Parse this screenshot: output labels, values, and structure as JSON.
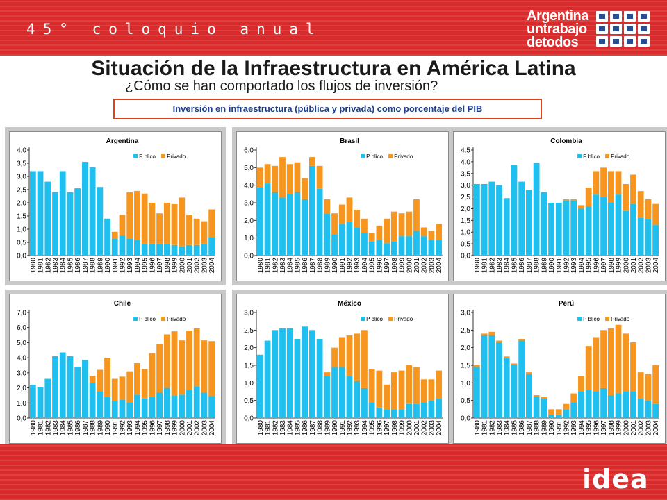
{
  "header": {
    "coloquio": "45° coloquio anual",
    "logo_lines": [
      "Argentina",
      "untrabajo",
      "detodos"
    ]
  },
  "title": "Situación de la Infraestructura en América Latina",
  "subtitle": "¿Cómo se han comportado los flujos de inversión?",
  "chart_box_title": "Inversión en infraestructura (pública y privada) como porcentaje del PIB",
  "footer": {
    "brand": "idea"
  },
  "colors": {
    "publico": "#1fc0f0",
    "privado": "#f7961e",
    "band": "#d92b2b",
    "box_border": "#e0411d",
    "box_text": "#1f3e8a"
  },
  "chart_data": [
    {
      "type": "bar",
      "stacked": true,
      "title": "Argentina",
      "categories": [
        "1980",
        "1981",
        "1982",
        "1983",
        "1984",
        "1985",
        "1986",
        "1987",
        "1988",
        "1989",
        "1990",
        "1991",
        "1992",
        "1993",
        "1994",
        "1995",
        "1996",
        "1997",
        "1998",
        "1999",
        "2000",
        "2001",
        "2002",
        "2003",
        "2004"
      ],
      "series": [
        {
          "name": "Público",
          "values": [
            3.2,
            3.2,
            2.8,
            2.4,
            3.2,
            2.4,
            2.55,
            3.55,
            3.35,
            2.6,
            1.4,
            0.65,
            0.75,
            0.65,
            0.6,
            0.45,
            0.45,
            0.45,
            0.45,
            0.4,
            0.35,
            0.4,
            0.4,
            0.45,
            0.7
          ]
        },
        {
          "name": "Privado",
          "values": [
            0,
            0,
            0,
            0,
            0,
            0,
            0,
            0,
            0,
            0,
            0,
            0.25,
            0.8,
            1.75,
            1.85,
            1.9,
            1.55,
            1.15,
            1.55,
            1.55,
            1.85,
            1.15,
            1.0,
            0.85,
            1.05
          ]
        }
      ],
      "ylim": [
        0,
        4.0
      ],
      "yticks": [
        "0,0",
        "0,5",
        "1,0",
        "1,5",
        "2,0",
        "2,5",
        "3,0",
        "3,5",
        "4,0"
      ],
      "legend": [
        "Público",
        "Privado"
      ],
      "legend_labels": [
        "P blico",
        "Privado"
      ],
      "legend_placement": "top-right",
      "grid": false
    },
    {
      "type": "bar",
      "stacked": true,
      "title": "Brasil",
      "categories": [
        "1980",
        "1981",
        "1982",
        "1983",
        "1984",
        "1985",
        "1986",
        "1987",
        "1988",
        "1989",
        "1990",
        "1991",
        "1992",
        "1993",
        "1994",
        "1995",
        "1996",
        "1997",
        "1998",
        "1999",
        "2000",
        "2001",
        "2002",
        "2003",
        "2004"
      ],
      "series": [
        {
          "name": "Público",
          "values": [
            3.9,
            4.1,
            3.6,
            3.3,
            3.5,
            3.6,
            3.2,
            5.1,
            3.8,
            2.4,
            1.2,
            1.8,
            1.9,
            1.6,
            1.3,
            0.8,
            0.9,
            0.7,
            0.8,
            1.1,
            1.1,
            1.4,
            1.1,
            0.9,
            0.9
          ]
        },
        {
          "name": "Privado",
          "values": [
            1.1,
            1.1,
            1.5,
            2.3,
            1.7,
            1.7,
            1.2,
            0.5,
            1.3,
            0.8,
            1.2,
            1.1,
            1.4,
            1.0,
            0.8,
            0.5,
            0.8,
            1.4,
            1.7,
            1.3,
            1.4,
            1.8,
            0.5,
            0.5,
            0.9
          ]
        }
      ],
      "ylim": [
        0,
        6.0
      ],
      "yticks": [
        "0,0",
        "1,0",
        "2,0",
        "3,0",
        "4,0",
        "5,0",
        "6,0"
      ],
      "legend": [
        "Público",
        "Privado"
      ],
      "legend_labels": [
        "P blico",
        "Privado"
      ],
      "legend_placement": "top-right",
      "grid": false
    },
    {
      "type": "bar",
      "stacked": true,
      "title": "Colombia",
      "categories": [
        "1980",
        "1981",
        "1982",
        "1983",
        "1984",
        "1985",
        "1986",
        "1987",
        "1988",
        "1989",
        "1990",
        "1991",
        "1992",
        "1993",
        "1994",
        "1995",
        "1996",
        "1997",
        "1998",
        "1999",
        "2000",
        "2001",
        "2002",
        "2003",
        "2004"
      ],
      "series": [
        {
          "name": "Público",
          "values": [
            3.05,
            3.05,
            3.15,
            3.0,
            2.45,
            3.85,
            3.15,
            2.8,
            3.95,
            2.7,
            2.25,
            2.25,
            2.35,
            2.35,
            2.0,
            2.1,
            2.6,
            2.5,
            2.25,
            2.6,
            1.9,
            2.2,
            1.6,
            1.55,
            1.3
          ]
        },
        {
          "name": "Privado",
          "values": [
            0,
            0,
            0,
            0,
            0,
            0,
            0,
            0,
            0,
            0,
            0,
            0,
            0.05,
            0.05,
            0.15,
            0.8,
            1.0,
            1.25,
            1.35,
            1.0,
            1.15,
            1.25,
            1.15,
            0.85,
            0.9
          ]
        }
      ],
      "ylim": [
        0,
        4.5
      ],
      "yticks": [
        "0,0",
        "0,5",
        "1,0",
        "1,5",
        "2,0",
        "2,5",
        "3,0",
        "3,5",
        "4,0",
        "4,5"
      ],
      "legend": [
        "Público",
        "Privado"
      ],
      "legend_labels": [
        "P blico",
        "Privado"
      ],
      "legend_placement": "top-right",
      "grid": false
    },
    {
      "type": "bar",
      "stacked": true,
      "title": "Chile",
      "categories": [
        "1980",
        "1981",
        "1982",
        "1983",
        "1984",
        "1985",
        "1986",
        "1987",
        "1988",
        "1989",
        "1990",
        "1991",
        "1992",
        "1993",
        "1994",
        "1995",
        "1996",
        "1997",
        "1998",
        "1999",
        "2000",
        "2001",
        "2002",
        "2003",
        "2004"
      ],
      "series": [
        {
          "name": "Público",
          "values": [
            2.2,
            2.05,
            2.6,
            4.1,
            4.35,
            4.1,
            3.4,
            3.85,
            2.35,
            1.75,
            1.4,
            1.15,
            1.2,
            1.05,
            1.55,
            1.3,
            1.4,
            1.7,
            2.0,
            1.5,
            1.55,
            1.85,
            2.1,
            1.7,
            1.45
          ]
        },
        {
          "name": "Privado",
          "values": [
            0,
            0,
            0,
            0,
            0,
            0,
            0,
            0,
            0.45,
            1.45,
            2.6,
            1.45,
            1.55,
            2.05,
            2.1,
            1.95,
            2.9,
            3.2,
            3.55,
            4.25,
            3.6,
            3.95,
            3.85,
            3.45,
            3.65
          ]
        }
      ],
      "ylim": [
        0,
        7.0
      ],
      "yticks": [
        "0,0",
        "1,0",
        "2,0",
        "3,0",
        "4,0",
        "5,0",
        "6,0",
        "7,0"
      ],
      "legend": [
        "Público",
        "Privado"
      ],
      "legend_labels": [
        "P blico",
        "Privado"
      ],
      "legend_placement": "top-right",
      "grid": false
    },
    {
      "type": "bar",
      "stacked": true,
      "title": "México",
      "categories": [
        "1980",
        "1981",
        "1982",
        "1983",
        "1984",
        "1985",
        "1986",
        "1987",
        "1988",
        "1989",
        "1990",
        "1991",
        "1992",
        "1993",
        "1994",
        "1995",
        "1996",
        "1997",
        "1998",
        "1999",
        "2000",
        "2001",
        "2002",
        "2003",
        "2004"
      ],
      "series": [
        {
          "name": "Público",
          "values": [
            1.8,
            2.2,
            2.5,
            2.55,
            2.55,
            2.25,
            2.6,
            2.5,
            2.25,
            1.2,
            1.45,
            1.45,
            1.2,
            1.05,
            0.85,
            0.45,
            0.3,
            0.25,
            0.25,
            0.25,
            0.4,
            0.4,
            0.45,
            0.5,
            0.55
          ]
        },
        {
          "name": "Privado",
          "values": [
            0,
            0,
            0,
            0,
            0,
            0,
            0,
            0,
            0,
            0.1,
            0.55,
            0.85,
            1.15,
            1.35,
            1.65,
            0.95,
            1.05,
            0.7,
            1.05,
            1.1,
            1.1,
            1.05,
            0.65,
            0.6,
            0.8
          ]
        }
      ],
      "ylim": [
        0,
        3.0
      ],
      "yticks": [
        "0,0",
        "0,5",
        "1,0",
        "1,5",
        "2,0",
        "2,5",
        "3,0"
      ],
      "legend": [
        "Público",
        "Privado"
      ],
      "legend_labels": [
        "P blico",
        "Privado"
      ],
      "legend_placement": "top-right",
      "grid": false
    },
    {
      "type": "bar",
      "stacked": true,
      "title": "Perú",
      "categories": [
        "1980",
        "1981",
        "1982",
        "1983",
        "1984",
        "1985",
        "1986",
        "1987",
        "1988",
        "1989",
        "1990",
        "1991",
        "1992",
        "1993",
        "1994",
        "1995",
        "1996",
        "1997",
        "1998",
        "1999",
        "2000",
        "2001",
        "2002",
        "2003",
        "2004"
      ],
      "series": [
        {
          "name": "Público",
          "values": [
            1.45,
            2.35,
            2.35,
            2.15,
            1.7,
            1.5,
            2.2,
            1.25,
            0.6,
            0.55,
            0.1,
            0.1,
            0.25,
            0.45,
            0.75,
            0.8,
            0.75,
            0.85,
            0.65,
            0.7,
            0.75,
            0.75,
            0.55,
            0.5,
            0.4
          ]
        },
        {
          "name": "Privado",
          "values": [
            0.05,
            0.05,
            0.1,
            0.05,
            0.05,
            0.05,
            0.05,
            0.05,
            0.05,
            0.05,
            0.15,
            0.15,
            0.15,
            0.25,
            0.45,
            1.25,
            1.55,
            1.65,
            1.9,
            1.95,
            1.65,
            1.4,
            0.75,
            0.75,
            1.1
          ]
        }
      ],
      "ylim": [
        0,
        3.0
      ],
      "yticks": [
        "0,0",
        "0,5",
        "1,0",
        "1,5",
        "2,0",
        "2,5",
        "3,0"
      ],
      "legend": [
        "Público",
        "Privado"
      ],
      "legend_labels": [
        "P blico",
        "Privado"
      ],
      "legend_placement": "top-right",
      "grid": false
    }
  ]
}
